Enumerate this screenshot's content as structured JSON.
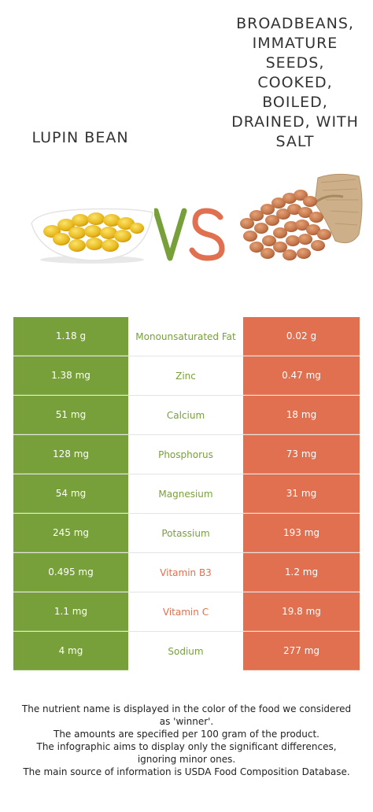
{
  "foods": {
    "left": {
      "name": "LUPIN BEAN",
      "image": "yellow-lupin-beans-in-bowl"
    },
    "right": {
      "name": "BROADBEANS, IMMATURE SEEDS, COOKED, BOILED, DRAINED, WITH SALT",
      "image": "brown-broad-beans-spilling-from-sack"
    },
    "vs_label": "VS"
  },
  "colors": {
    "left": "#77a03a",
    "right": "#e0704f"
  },
  "nutrients": [
    {
      "name": "Monounsaturated Fat",
      "left": "1.18 g",
      "right": "0.02 g",
      "winner": "left"
    },
    {
      "name": "Zinc",
      "left": "1.38 mg",
      "right": "0.47 mg",
      "winner": "left"
    },
    {
      "name": "Calcium",
      "left": "51 mg",
      "right": "18 mg",
      "winner": "left"
    },
    {
      "name": "Phosphorus",
      "left": "128 mg",
      "right": "73 mg",
      "winner": "left"
    },
    {
      "name": "Magnesium",
      "left": "54 mg",
      "right": "31 mg",
      "winner": "left"
    },
    {
      "name": "Potassium",
      "left": "245 mg",
      "right": "193 mg",
      "winner": "left"
    },
    {
      "name": "Vitamin B3",
      "left": "0.495 mg",
      "right": "1.2 mg",
      "winner": "right"
    },
    {
      "name": "Vitamin C",
      "left": "1.1 mg",
      "right": "19.8 mg",
      "winner": "right"
    },
    {
      "name": "Sodium",
      "left": "4 mg",
      "right": "277 mg",
      "winner": "left"
    }
  ],
  "footnote": [
    "The nutrient name is displayed in the color of the food we considered as 'winner'.",
    "The amounts are specified per 100 gram of the product.",
    "The infographic aims to display only the significant differences, ignoring minor ones.",
    "The main source of information is USDA Food Composition Database."
  ]
}
